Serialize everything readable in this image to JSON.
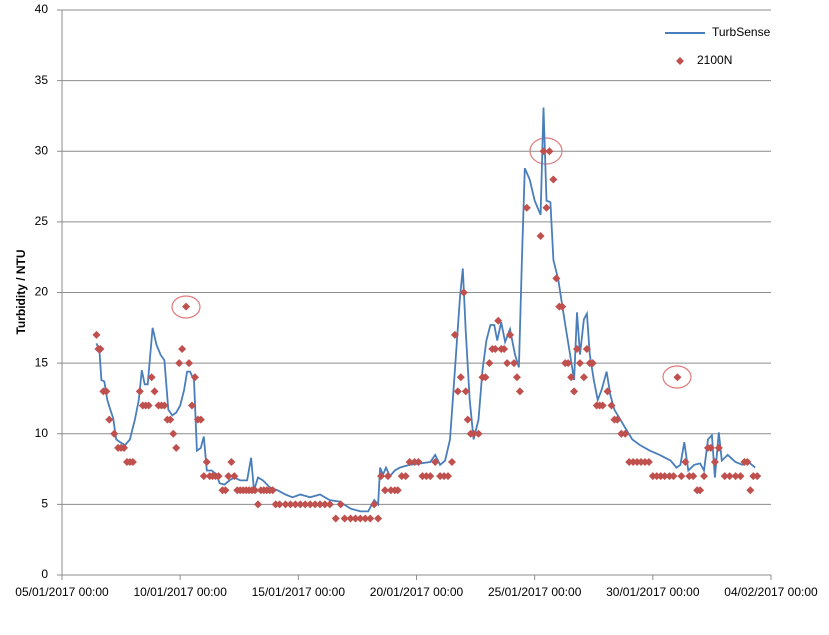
{
  "chart_data": {
    "type": "line_scatter",
    "y_label": "Turbidity / NTU",
    "ylim": [
      0,
      40
    ],
    "yticks": [
      0,
      5,
      10,
      15,
      20,
      25,
      30,
      35,
      40
    ],
    "xlim": [
      "05/01/2017 00:00",
      "04/02/2017 00:00"
    ],
    "xticks": [
      "05/01/2017 00:00",
      "10/01/2017 00:00",
      "15/01/2017 00:00",
      "20/01/2017 00:00",
      "25/01/2017 00:00",
      "30/01/2017 00:00",
      "04/02/2017 00:00"
    ],
    "grid": true,
    "legend": "top-right",
    "series": [
      {
        "name": "TurbSense",
        "type": "line",
        "color": "#4a7ebb",
        "x": [
          "06/01/2017 11:00",
          "06/01/2017 14:00",
          "06/01/2017 16:00",
          "06/01/2017 19:00",
          "06/01/2017 22:00",
          "07/01/2017 01:00",
          "07/01/2017 04:00",
          "07/01/2017 07:00",
          "07/01/2017 11:00",
          "07/01/2017 16:00",
          "07/01/2017 21:00",
          "08/01/2017 02:00",
          "08/01/2017 06:00",
          "08/01/2017 09:00",
          "08/01/2017 12:00",
          "08/01/2017 15:00",
          "08/01/2017 20:00",
          "09/01/2017 00:00",
          "09/01/2017 04:00",
          "09/01/2017 08:00",
          "09/01/2017 12:00",
          "09/01/2017 16:00",
          "09/01/2017 20:00",
          "10/01/2017 00:00",
          "10/01/2017 04:00",
          "10/01/2017 07:00",
          "10/01/2017 10:00",
          "10/01/2017 14:00",
          "10/01/2017 17:00",
          "10/01/2017 21:00",
          "11/01/2017 00:00",
          "11/01/2017 03:00",
          "11/01/2017 08:00",
          "11/01/2017 13:00",
          "11/01/2017 16:00",
          "11/01/2017 21:00",
          "12/01/2017 02:00",
          "12/01/2017 07:00",
          "12/01/2017 13:00",
          "12/01/2017 20:00",
          "13/01/2017 00:00",
          "13/01/2017 03:00",
          "13/01/2017 07:00",
          "13/01/2017 12:00",
          "13/01/2017 19:00",
          "14/01/2017 03:00",
          "14/01/2017 11:00",
          "14/01/2017 18:00",
          "15/01/2017 02:00",
          "15/01/2017 12:00",
          "15/01/2017 22:00",
          "16/01/2017 08:00",
          "16/01/2017 18:00",
          "17/01/2017 05:00",
          "17/01/2017 15:00",
          "17/01/2017 23:00",
          "18/01/2017 05:00",
          "18/01/2017 09:00",
          "18/01/2017 11:00",
          "18/01/2017 14:00",
          "18/01/2017 17:00",
          "18/01/2017 21:00",
          "19/01/2017 02:00",
          "19/01/2017 07:00",
          "19/01/2017 17:00",
          "20/01/2017 04:00",
          "20/01/2017 14:00",
          "20/01/2017 19:00",
          "21/01/2017 00:00",
          "21/01/2017 05:00",
          "21/01/2017 10:00",
          "21/01/2017 15:00",
          "21/01/2017 20:00",
          "21/01/2017 23:00",
          "22/01/2017 02:00",
          "22/01/2017 06:00",
          "22/01/2017 10:00",
          "22/01/2017 15:00",
          "22/01/2017 19:00",
          "22/01/2017 23:00",
          "23/01/2017 03:00",
          "23/01/2017 07:00",
          "23/01/2017 10:00",
          "23/01/2017 14:00",
          "23/01/2017 18:00",
          "23/01/2017 23:00",
          "24/01/2017 04:00",
          "24/01/2017 08:00",
          "24/01/2017 11:00",
          "24/01/2017 14:00",
          "24/01/2017 19:00",
          "25/01/2017 00:00",
          "25/01/2017 06:00",
          "25/01/2017 09:00",
          "25/01/2017 12:00",
          "25/01/2017 16:00",
          "25/01/2017 19:00",
          "26/01/2017 00:00",
          "26/01/2017 04:00",
          "26/01/2017 08:00",
          "26/01/2017 12:00",
          "26/01/2017 16:00",
          "26/01/2017 19:00",
          "26/01/2017 22:00",
          "27/01/2017 02:00",
          "27/01/2017 05:00",
          "27/01/2017 08:00",
          "27/01/2017 12:00",
          "27/01/2017 16:00",
          "27/01/2017 20:00",
          "28/01/2017 01:00",
          "28/01/2017 05:00",
          "28/01/2017 09:00",
          "28/01/2017 15:00",
          "28/01/2017 21:00",
          "29/01/2017 03:00",
          "29/01/2017 11:00",
          "29/01/2017 21:00",
          "30/01/2017 07:00",
          "30/01/2017 18:00",
          "31/01/2017 00:00",
          "31/01/2017 04:00",
          "31/01/2017 08:00",
          "31/01/2017 12:00",
          "31/01/2017 18:00",
          "01/02/2017 00:00",
          "01/02/2017 04:00",
          "01/02/2017 08:00",
          "01/02/2017 12:00",
          "01/02/2017 15:00",
          "01/02/2017 19:00",
          "01/02/2017 22:00",
          "02/02/2017 04:00",
          "02/02/2017 12:00",
          "02/02/2017 19:00",
          "03/02/2017 01:00",
          "03/02/2017 08:00"
        ],
        "values": [
          16.4,
          15.9,
          13.8,
          13.7,
          12.4,
          11.7,
          11.1,
          9.6,
          9.4,
          9.2,
          9.6,
          11,
          12.4,
          14.5,
          13.5,
          13.5,
          17.5,
          16.3,
          15.6,
          15.2,
          11.7,
          11.3,
          11.5,
          12,
          13.1,
          14.4,
          14.4,
          13.8,
          8.8,
          9,
          9.8,
          7.4,
          7.4,
          7.1,
          6.5,
          6.4,
          6.7,
          6.9,
          6.7,
          6.7,
          8.3,
          6,
          6.9,
          6.7,
          6.2,
          6,
          5.7,
          5.5,
          5.7,
          5.5,
          5.7,
          5.3,
          5.2,
          4.7,
          4.5,
          4.5,
          5.3,
          5,
          7.6,
          7.1,
          7.6,
          7,
          7.4,
          7.6,
          7.8,
          7.9,
          8,
          8.5,
          7.8,
          8.1,
          9.6,
          14.5,
          19.5,
          21.7,
          17.3,
          12.4,
          9.6,
          11,
          14.5,
          16.6,
          17.7,
          17.7,
          16.6,
          17.9,
          16.5,
          17.4,
          15.6,
          14.7,
          22.3,
          28.8,
          28,
          26.5,
          25.5,
          33.1,
          26.5,
          26.4,
          22.3,
          20.9,
          19.1,
          17.3,
          15.6,
          13.8,
          18.6,
          15.6,
          18.1,
          18.5,
          15.6,
          13.8,
          12.4,
          13.1,
          14.4,
          12.7,
          11.7,
          11,
          10.3,
          9.6,
          9.2,
          8.8,
          8.5,
          8.1,
          7.6,
          7.8,
          9.4,
          7.4,
          7.8,
          7.9,
          7.4,
          9.6,
          9.9,
          6.9,
          10.1,
          8.1,
          8.5,
          8,
          7.8,
          8,
          7.6
        ]
      },
      {
        "name": "2100N",
        "type": "scatter",
        "color": "#c0504d",
        "x": [
          "06/01/2017 11:00",
          "06/01/2017 13:00",
          "06/01/2017 15:00",
          "06/01/2017 18:00",
          "06/01/2017 21:00",
          "07/01/2017 00:00",
          "07/01/2017 05:00",
          "07/01/2017 09:00",
          "07/01/2017 12:00",
          "07/01/2017 15:00",
          "07/01/2017 18:00",
          "07/01/2017 21:00",
          "08/01/2017 00:00",
          "08/01/2017 07:00",
          "08/01/2017 10:00",
          "08/01/2017 13:00",
          "08/01/2017 16:00",
          "08/01/2017 19:00",
          "08/01/2017 22:00",
          "09/01/2017 02:00",
          "09/01/2017 05:00",
          "09/01/2017 08:00",
          "09/01/2017 11:00",
          "09/01/2017 14:00",
          "09/01/2017 17:00",
          "09/01/2017 20:00",
          "09/01/2017 23:00",
          "10/01/2017 02:00",
          "10/01/2017 06:00",
          "10/01/2017 09:00",
          "10/01/2017 12:00",
          "10/01/2017 15:00",
          "10/01/2017 18:00",
          "10/01/2017 21:00",
          "11/01/2017 00:00",
          "11/01/2017 03:00",
          "11/01/2017 06:00",
          "11/01/2017 09:00",
          "11/01/2017 12:00",
          "11/01/2017 15:00",
          "11/01/2017 19:00",
          "11/01/2017 22:00",
          "12/01/2017 01:00",
          "12/01/2017 04:00",
          "12/01/2017 07:00",
          "12/01/2017 10:00",
          "12/01/2017 13:00",
          "12/01/2017 16:00",
          "12/01/2017 19:00",
          "12/01/2017 22:00",
          "13/01/2017 01:00",
          "13/01/2017 04:00",
          "13/01/2017 07:00",
          "13/01/2017 10:00",
          "13/01/2017 13:00",
          "13/01/2017 16:00",
          "13/01/2017 19:00",
          "13/01/2017 22:00",
          "14/01/2017 01:00",
          "14/01/2017 05:00",
          "14/01/2017 11:00",
          "14/01/2017 16:00",
          "14/01/2017 21:00",
          "15/01/2017 02:00",
          "15/01/2017 07:00",
          "15/01/2017 12:00",
          "15/01/2017 17:00",
          "15/01/2017 22:00",
          "16/01/2017 03:00",
          "16/01/2017 08:00",
          "16/01/2017 14:00",
          "16/01/2017 19:00",
          "16/01/2017 23:00",
          "17/01/2017 05:00",
          "17/01/2017 10:00",
          "17/01/2017 15:00",
          "17/01/2017 20:00",
          "18/01/2017 01:00",
          "18/01/2017 05:00",
          "18/01/2017 09:00",
          "18/01/2017 12:00",
          "18/01/2017 16:00",
          "18/01/2017 19:00",
          "18/01/2017 22:00",
          "19/01/2017 02:00",
          "19/01/2017 05:00",
          "19/01/2017 09:00",
          "19/01/2017 13:00",
          "19/01/2017 17:00",
          "19/01/2017 22:00",
          "20/01/2017 02:00",
          "20/01/2017 06:00",
          "20/01/2017 10:00",
          "20/01/2017 14:00",
          "20/01/2017 19:00",
          "21/01/2017 00:00",
          "21/01/2017 04:00",
          "21/01/2017 08:00",
          "21/01/2017 12:00",
          "21/01/2017 15:00",
          "21/01/2017 18:00",
          "21/01/2017 21:00",
          "22/01/2017 00:00",
          "22/01/2017 02:00",
          "22/01/2017 04:00",
          "22/01/2017 07:00",
          "22/01/2017 10:00",
          "22/01/2017 15:00",
          "22/01/2017 19:00",
          "22/01/2017 22:00",
          "23/01/2017 02:00",
          "23/01/2017 05:00",
          "23/01/2017 08:00",
          "23/01/2017 11:00",
          "23/01/2017 14:00",
          "23/01/2017 17:00",
          "23/01/2017 20:00",
          "23/01/2017 23:00",
          "24/01/2017 03:00",
          "24/01/2017 06:00",
          "24/01/2017 09:00",
          "24/01/2017 16:00",
          "25/01/2017 06:00",
          "25/01/2017 09:00",
          "25/01/2017 12:00",
          "25/01/2017 15:00",
          "25/01/2017 19:00",
          "25/01/2017 22:00",
          "26/01/2017 01:00",
          "26/01/2017 04:00",
          "26/01/2017 07:00",
          "26/01/2017 10:00",
          "26/01/2017 13:00",
          "26/01/2017 16:00",
          "26/01/2017 19:00",
          "26/01/2017 22:00",
          "27/01/2017 02:00",
          "27/01/2017 05:00",
          "27/01/2017 08:00",
          "27/01/2017 11:00",
          "27/01/2017 15:00",
          "27/01/2017 18:00",
          "27/01/2017 21:00",
          "28/01/2017 02:00",
          "28/01/2017 06:00",
          "28/01/2017 09:00",
          "28/01/2017 12:00",
          "28/01/2017 16:00",
          "28/01/2017 20:00",
          "29/01/2017 00:00",
          "29/01/2017 04:00",
          "29/01/2017 08:00",
          "29/01/2017 12:00",
          "29/01/2017 16:00",
          "29/01/2017 20:00",
          "30/01/2017 00:00",
          "30/01/2017 04:00",
          "30/01/2017 08:00",
          "30/01/2017 12:00",
          "30/01/2017 17:00",
          "30/01/2017 21:00",
          "31/01/2017 01:00",
          "31/01/2017 05:00",
          "31/01/2017 09:00",
          "31/01/2017 13:00",
          "31/01/2017 17:00",
          "31/01/2017 21:00",
          "01/02/2017 00:00",
          "01/02/2017 04:00",
          "01/02/2017 08:00",
          "01/02/2017 11:00",
          "01/02/2017 15:00",
          "01/02/2017 19:00",
          "02/02/2017 01:00",
          "02/02/2017 06:00",
          "02/02/2017 12:00",
          "02/02/2017 17:00",
          "02/02/2017 21:00",
          "03/02/2017 00:00",
          "03/02/2017 03:00",
          "03/02/2017 06:00",
          "03/02/2017 10:00"
        ],
        "values": [
          17,
          16,
          16,
          13,
          13,
          11,
          10,
          9,
          9,
          9,
          8,
          8,
          8,
          13,
          12,
          12,
          12,
          14,
          13,
          12,
          12,
          12,
          11,
          11,
          10,
          9,
          15,
          16,
          19,
          15,
          12,
          14,
          11,
          11,
          7,
          8,
          7,
          7,
          7,
          7,
          6,
          6,
          7,
          8,
          7,
          6,
          6,
          6,
          6,
          6,
          6,
          6,
          5,
          6,
          6,
          6,
          6,
          6,
          5,
          5,
          5,
          5,
          5,
          5,
          5,
          5,
          5,
          5,
          5,
          5,
          4,
          5,
          4,
          4,
          4,
          4,
          4,
          4,
          5,
          4,
          7,
          6,
          7,
          6,
          6,
          6,
          7,
          7,
          8,
          8,
          8,
          7,
          7,
          7,
          8,
          7,
          7,
          7,
          8,
          17,
          13,
          14,
          20,
          13,
          11,
          10,
          10,
          10,
          14,
          14,
          15,
          16,
          16,
          18,
          16,
          16,
          15,
          17,
          15,
          14,
          13,
          26,
          24,
          30,
          26,
          30,
          28,
          21,
          19,
          19,
          15,
          15,
          14,
          13,
          16,
          15,
          14,
          16,
          15,
          15,
          12,
          12,
          12,
          13,
          12,
          11,
          11,
          10,
          10,
          8,
          8,
          8,
          8,
          8,
          8,
          7,
          7,
          7,
          7,
          7,
          7,
          14,
          7,
          8,
          7,
          7,
          6,
          6,
          7,
          9,
          9,
          8,
          9,
          7,
          7,
          7,
          7,
          8,
          8,
          6,
          7,
          7
        ]
      }
    ]
  }
}
